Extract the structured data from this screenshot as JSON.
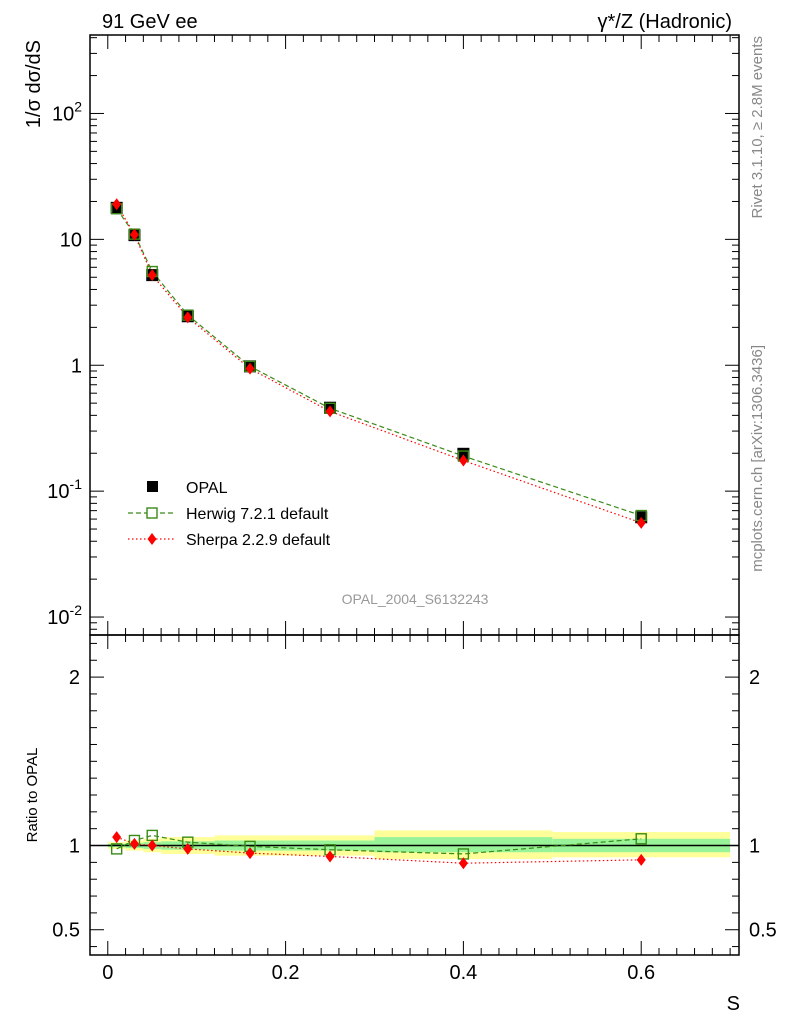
{
  "header": {
    "left_label": "91 GeV ee",
    "right_label": "γ*/Z (Hadronic)"
  },
  "side_labels": {
    "rivet": "Rivet 3.1.10, ≥ 2.8M events",
    "mcplots": "mcplots.cern.ch [arXiv:1306.3436]"
  },
  "watermark": "OPAL_2004_S6132243",
  "chart_data": [
    {
      "type": "line",
      "panel": "main",
      "ylabel": "1/σ dσ/dS",
      "yscale": "log",
      "ylim": [
        0.0072,
        420
      ],
      "xlim": [
        -0.02,
        0.71
      ],
      "ytick_labels": [
        "10^-2",
        "10^-1",
        "1",
        "10",
        "10^2"
      ],
      "ytick_values": [
        0.01,
        0.1,
        1,
        10,
        100
      ],
      "x": [
        0.01,
        0.03,
        0.05,
        0.09,
        0.16,
        0.25,
        0.4,
        0.6
      ],
      "series": [
        {
          "name": "OPAL",
          "style": "data",
          "color": "#000000",
          "values": [
            17.8,
            10.8,
            5.2,
            2.45,
            0.98,
            0.46,
            0.198,
            0.062
          ]
        },
        {
          "name": "Herwig 7.2.1 default",
          "style": "dashed-open-square",
          "color": "#3a8a16",
          "values": [
            17.5,
            11.0,
            5.55,
            2.5,
            0.98,
            0.455,
            0.19,
            0.064
          ]
        },
        {
          "name": "Sherpa 2.2.9 default",
          "style": "dotted-diamond",
          "color": "#ff0000",
          "values": [
            19.0,
            10.9,
            5.2,
            2.4,
            0.94,
            0.43,
            0.175,
            0.056
          ]
        }
      ],
      "legend_location": "lower-left"
    },
    {
      "type": "line",
      "panel": "ratio",
      "ylabel": "Ratio to OPAL",
      "xlabel": "S",
      "ylim": [
        0.35,
        2.25
      ],
      "xlim": [
        -0.02,
        0.71
      ],
      "ytick_labels": [
        "0.5",
        "1",
        "2"
      ],
      "ytick_values": [
        0.5,
        1,
        2
      ],
      "xtick_labels": [
        "0",
        "0.2",
        "0.4",
        "0.6"
      ],
      "xtick_values": [
        0,
        0.2,
        0.4,
        0.6
      ],
      "bin_edges": [
        0,
        0.02,
        0.04,
        0.06,
        0.12,
        0.2,
        0.3,
        0.5,
        0.7
      ],
      "band_yellow": [
        [
          0.98,
          1.02
        ],
        [
          0.97,
          1.03
        ],
        [
          0.96,
          1.04
        ],
        [
          0.95,
          1.05
        ],
        [
          0.94,
          1.06
        ],
        [
          0.94,
          1.06
        ],
        [
          0.92,
          1.09
        ],
        [
          0.93,
          1.08
        ]
      ],
      "band_green": [
        [
          0.99,
          1.01
        ],
        [
          0.985,
          1.015
        ],
        [
          0.98,
          1.02
        ],
        [
          0.975,
          1.025
        ],
        [
          0.97,
          1.03
        ],
        [
          0.97,
          1.03
        ],
        [
          0.96,
          1.05
        ],
        [
          0.96,
          1.04
        ]
      ],
      "x": [
        0.01,
        0.03,
        0.05,
        0.09,
        0.16,
        0.25,
        0.4,
        0.6
      ],
      "series": [
        {
          "name": "Herwig 7.2.1 default",
          "color": "#3a8a16",
          "values": [
            0.98,
            1.03,
            1.06,
            1.02,
            0.995,
            0.975,
            0.95,
            1.04
          ]
        },
        {
          "name": "Sherpa 2.2.9 default",
          "color": "#ff0000",
          "values": [
            1.05,
            1.01,
            1.0,
            0.98,
            0.955,
            0.935,
            0.895,
            0.915
          ]
        }
      ]
    }
  ]
}
